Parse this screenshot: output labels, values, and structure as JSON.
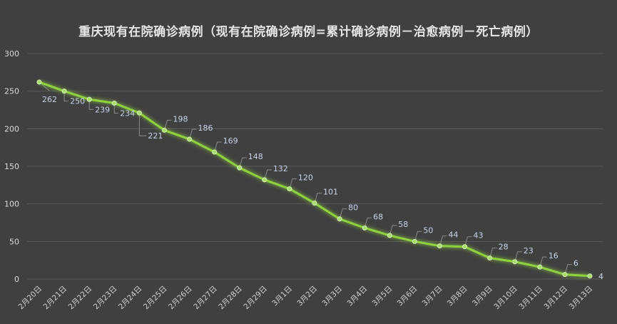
{
  "chart_data": {
    "type": "line",
    "title": "重庆现有在院确诊病例（现有在院确诊病例=累计确诊病例－治愈病例－死亡病例）",
    "xlabel": "",
    "ylabel": "",
    "ylim": [
      0,
      300
    ],
    "yticks": [
      0,
      50,
      100,
      150,
      200,
      250,
      300
    ],
    "grid": true,
    "categories": [
      "2月20日",
      "2月21日",
      "2月22日",
      "2月23日",
      "2月24日",
      "2月25日",
      "2月26日",
      "2月27日",
      "2月28日",
      "2月29日",
      "3月1日",
      "3月2日",
      "3月3日",
      "3月4日",
      "3月5日",
      "3月6日",
      "3月7日",
      "3月8日",
      "3月9日",
      "3月10日",
      "3月11日",
      "3月12日",
      "3月13日"
    ],
    "values": [
      262,
      250,
      239,
      234,
      221,
      198,
      186,
      169,
      148,
      132,
      120,
      101,
      80,
      68,
      58,
      50,
      44,
      43,
      28,
      23,
      16,
      6,
      4
    ],
    "data_labels": true,
    "line_color": "#8fd13f",
    "background": "#404040"
  }
}
